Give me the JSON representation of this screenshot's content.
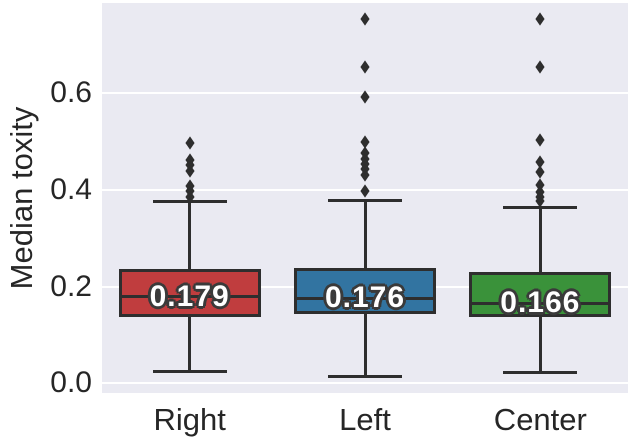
{
  "figure": {
    "background": "#ffffff",
    "panel_color": "#eaeaf2",
    "grid_color": "#ffffff",
    "line_color": "#2e2e2e",
    "text_color": "#262626",
    "label_outline_color": "#3a3a3a",
    "marker_icon": "diamond-icon"
  },
  "chart_data": {
    "type": "box",
    "title": "",
    "xlabel": "",
    "ylabel": "Median toxity",
    "categories": [
      "Right",
      "Left",
      "Center"
    ],
    "ylim": [
      -0.02,
      0.787
    ],
    "yticks": [
      0,
      0.2,
      0.4,
      0.6
    ],
    "ytick_labels": [
      "0.0",
      "0.2",
      "0.4",
      "0.6"
    ],
    "grid": "horizontal",
    "legend": false,
    "style": "seaborn-darkgrid",
    "series": [
      {
        "name": "Right",
        "color": "#c03d3e",
        "median": 0.179,
        "median_label": "0.179",
        "q1": 0.138,
        "q3": 0.236,
        "whisker_low": 0.025,
        "whisker_high": 0.377,
        "outliers": [
          0.385,
          0.399,
          0.408,
          0.44,
          0.451,
          0.462,
          0.497
        ]
      },
      {
        "name": "Left",
        "color": "#3274a1",
        "median": 0.176,
        "median_label": "0.176",
        "q1": 0.144,
        "q3": 0.239,
        "whisker_low": 0.014,
        "whisker_high": 0.378,
        "outliers": [
          0.399,
          0.431,
          0.443,
          0.454,
          0.464,
          0.476,
          0.499,
          0.593,
          0.655,
          0.754
        ]
      },
      {
        "name": "Center",
        "color": "#3a923a",
        "median": 0.166,
        "median_label": "0.166",
        "q1": 0.138,
        "q3": 0.231,
        "whisker_low": 0.023,
        "whisker_high": 0.363,
        "outliers": [
          0.378,
          0.386,
          0.396,
          0.41,
          0.437,
          0.458,
          0.503,
          0.654,
          0.754
        ]
      }
    ]
  }
}
